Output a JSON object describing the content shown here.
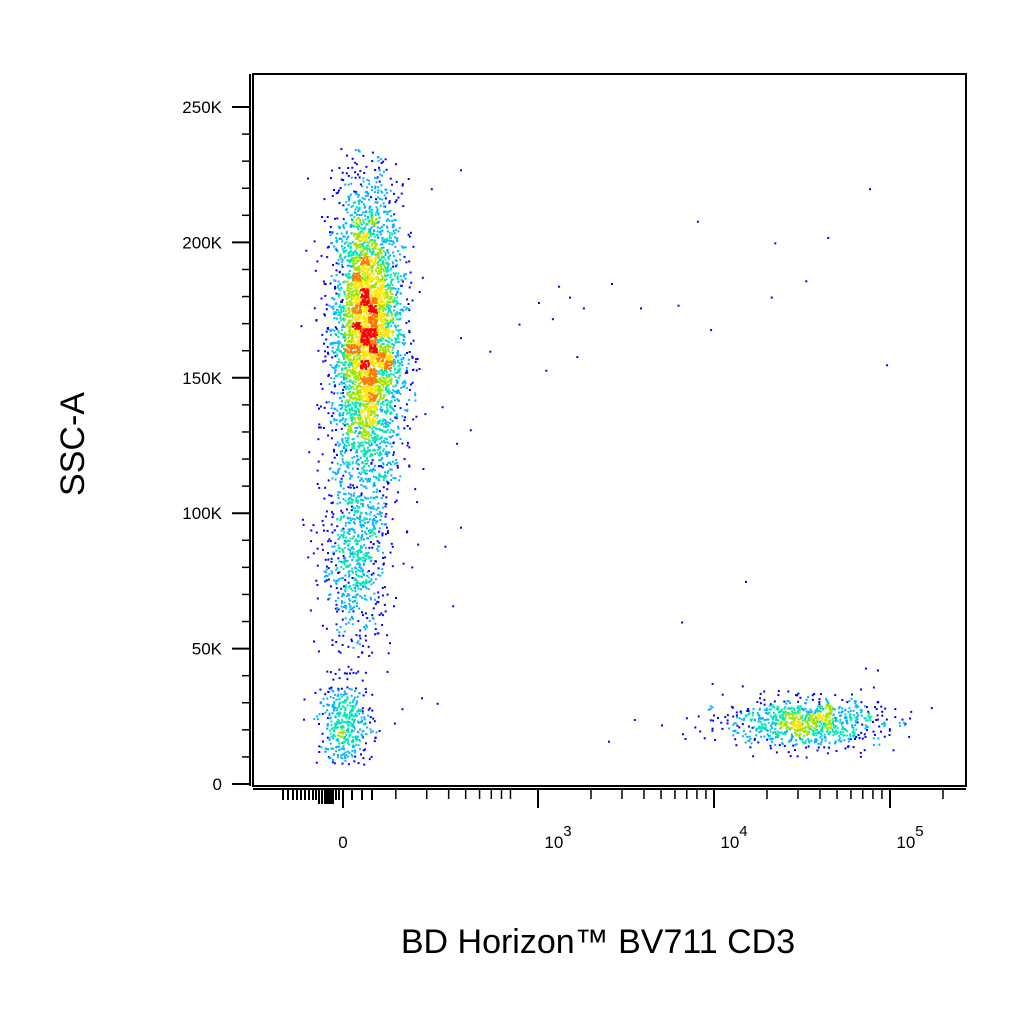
{
  "chart_data": {
    "type": "scatter",
    "subtype": "flow-cytometry-density-dot-plot",
    "title": "",
    "xlabel": "BD Horizon™ BV711 CD3",
    "ylabel": "SSC-A",
    "x_scale": "biexponential",
    "x_tick_labels": [
      {
        "value": 0,
        "base": "0",
        "exp": ""
      },
      {
        "value": 1000,
        "base": "10",
        "exp": "3"
      },
      {
        "value": 10000,
        "base": "10",
        "exp": "4"
      },
      {
        "value": 100000,
        "base": "10",
        "exp": "5"
      }
    ],
    "y_ticks": [
      {
        "value": 0,
        "label": "0"
      },
      {
        "value": 50000,
        "label": "50K"
      },
      {
        "value": 100000,
        "label": "100K"
      },
      {
        "value": 150000,
        "label": "150K"
      },
      {
        "value": 200000,
        "label": "200K"
      },
      {
        "value": 250000,
        "label": "250K"
      }
    ],
    "ylim": [
      0,
      262144
    ],
    "xlim": [
      -200,
      262144
    ],
    "grid": false,
    "legend": "none",
    "color_map": [
      "#0000ff",
      "#00b4ff",
      "#00e6b4",
      "#9fe600",
      "#ffe600",
      "#ff7800",
      "#ff0000"
    ],
    "populations": [
      {
        "name": "",
        "count": 4200,
        "x_center": 120,
        "x_spread": 90,
        "y_center": 165000,
        "y_spread": 28000
      },
      {
        "name": "",
        "count": 650,
        "x_center": 60,
        "x_spread": 90,
        "y_center": 83000,
        "y_spread": 17000
      },
      {
        "name": "",
        "count": 420,
        "x_center": 10,
        "x_spread": 70,
        "y_center": 22000,
        "y_spread": 8000
      },
      {
        "name": "",
        "count": 900,
        "x_center": 32000,
        "x_spread": 0.22,
        "y_center": 23000,
        "y_spread": 4500
      }
    ],
    "outlier_points": [
      [
        600,
        227000
      ],
      [
        450,
        220000
      ],
      [
        8000,
        208000
      ],
      [
        76000,
        220000
      ],
      [
        22000,
        200000
      ],
      [
        44000,
        202000
      ],
      [
        1300,
        184000
      ],
      [
        2600,
        185000
      ],
      [
        33000,
        186000
      ],
      [
        1000,
        178000
      ],
      [
        1500,
        180000
      ],
      [
        3800,
        176000
      ],
      [
        6200,
        177000
      ],
      [
        21000,
        180000
      ],
      [
        1800,
        176000
      ],
      [
        900,
        170000
      ],
      [
        1200,
        172000
      ],
      [
        9500,
        168000
      ],
      [
        750,
        160000
      ],
      [
        1100,
        153000
      ],
      [
        1650,
        158000
      ],
      [
        600,
        165000
      ],
      [
        95000,
        155000
      ],
      [
        650,
        131000
      ],
      [
        580,
        126000
      ],
      [
        600,
        95000
      ],
      [
        520,
        88000
      ],
      [
        560,
        66000
      ],
      [
        15000,
        75000
      ],
      [
        6500,
        60000
      ],
      [
        72000,
        43000
      ],
      [
        80000,
        36000
      ],
      [
        3500,
        24000
      ],
      [
        2500,
        16000
      ],
      [
        6800,
        17000
      ],
      [
        5000,
        22000
      ],
      [
        400,
        32000
      ],
      [
        480,
        30000
      ],
      [
        300,
        28000
      ]
    ]
  }
}
